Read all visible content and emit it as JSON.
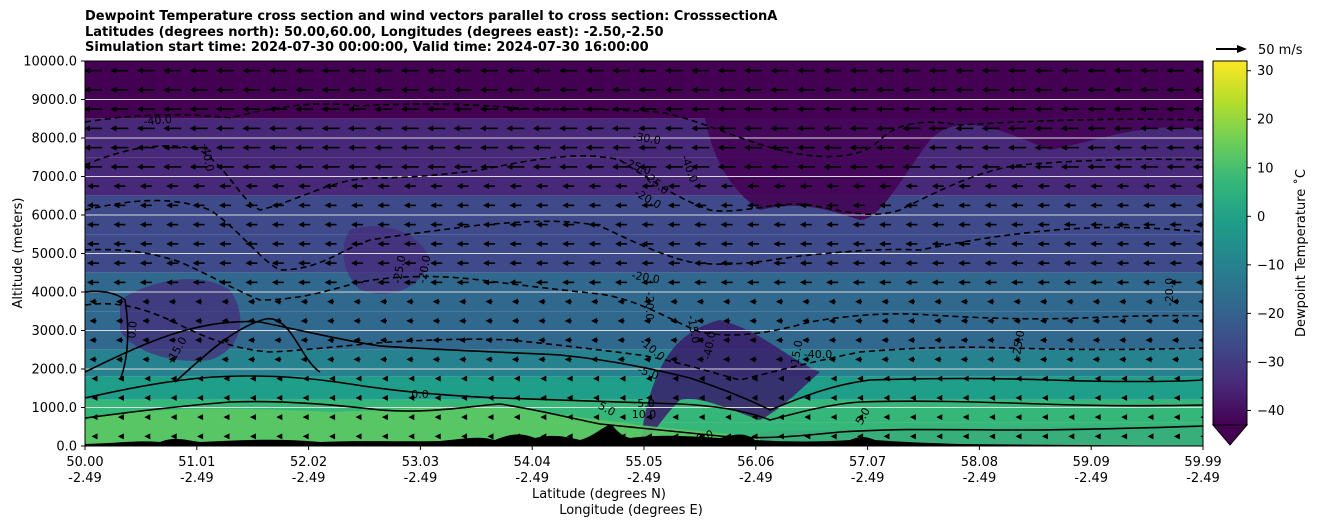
{
  "title_lines": [
    "Dewpoint Temperature cross section and wind vectors parallel to cross section: CrosssectionA",
    "Latitudes (degrees north): 50.00,60.00, Longitudes (degrees east): -2.50,-2.50",
    "Simulation start time: 2024-07-30 00:00:00, Valid time: 2024-07-30 16:00:00"
  ],
  "chart_data": {
    "type": "heatmap",
    "ylabel": "Altitude (meters)",
    "xlabel_lines": [
      "Latitude (degrees N)",
      "Longitude (degrees E)"
    ],
    "y_range": [
      0,
      10000
    ],
    "y_ticks": [
      0,
      1000,
      2000,
      3000,
      4000,
      5000,
      6000,
      7000,
      8000,
      9000,
      10000
    ],
    "y_tick_labels": [
      "0.0",
      "1000.0",
      "2000.0",
      "3000.0",
      "4000.0",
      "5000.0",
      "6000.0",
      "7000.0",
      "8000.0",
      "9000.0",
      "10000.0"
    ],
    "x_ticks": [
      {
        "lat": "50.00",
        "lon": "-2.49"
      },
      {
        "lat": "51.01",
        "lon": "-2.49"
      },
      {
        "lat": "52.02",
        "lon": "-2.49"
      },
      {
        "lat": "53.03",
        "lon": "-2.49"
      },
      {
        "lat": "54.04",
        "lon": "-2.49"
      },
      {
        "lat": "55.05",
        "lon": "-2.49"
      },
      {
        "lat": "56.06",
        "lon": "-2.49"
      },
      {
        "lat": "57.07",
        "lon": "-2.49"
      },
      {
        "lat": "58.08",
        "lon": "-2.49"
      },
      {
        "lat": "59.09",
        "lon": "-2.49"
      },
      {
        "lat": "59.99",
        "lon": "-2.49"
      }
    ],
    "horizontal_gridlines": true,
    "colorbar": {
      "label": "Dewpoint Temperature ˚C",
      "ticks": [
        -40,
        -30,
        -20,
        -10,
        0,
        10,
        20,
        30
      ],
      "range": [
        -43,
        32
      ],
      "colormap": "viridis",
      "extend": "min"
    },
    "vector_key": "50 m/s",
    "contour_labels": [
      "-40.0",
      "-40.0",
      "-30.0",
      "-25.0",
      "-25.0",
      "-20.0",
      "-40.0",
      "-25.0",
      "-20.0",
      "-20.0",
      "-20.0",
      "-25.0",
      "-15.0",
      "0.0",
      "-15.0",
      "0.0",
      "5.0",
      "10.0",
      "5.0",
      "0.0",
      "5.0",
      "-5.0",
      "-10.0",
      "-40.0",
      "-15.0",
      "-40.0",
      "-20.0"
    ],
    "profile_rows": [
      {
        "altitude": 9000,
        "dewpoint_min": -43,
        "dewpoint_max": -38
      },
      {
        "altitude": 7000,
        "dewpoint_min": -42,
        "dewpoint_max": -30
      },
      {
        "altitude": 5000,
        "dewpoint_min": -30,
        "dewpoint_max": -18
      },
      {
        "altitude": 3000,
        "dewpoint_min": -40,
        "dewpoint_max": -5
      },
      {
        "altitude": 1000,
        "dewpoint_min": -10,
        "dewpoint_max": 5
      },
      {
        "altitude": 200,
        "dewpoint_min": 5,
        "dewpoint_max": 12
      }
    ]
  },
  "colors": {
    "viridis": [
      "#440154",
      "#482878",
      "#3e4a89",
      "#31688e",
      "#26828e",
      "#1f9e89",
      "#35b779",
      "#6ece58",
      "#b5de2b",
      "#fde725"
    ],
    "terrain": "#000000",
    "gridline": "#d9d9d9"
  }
}
